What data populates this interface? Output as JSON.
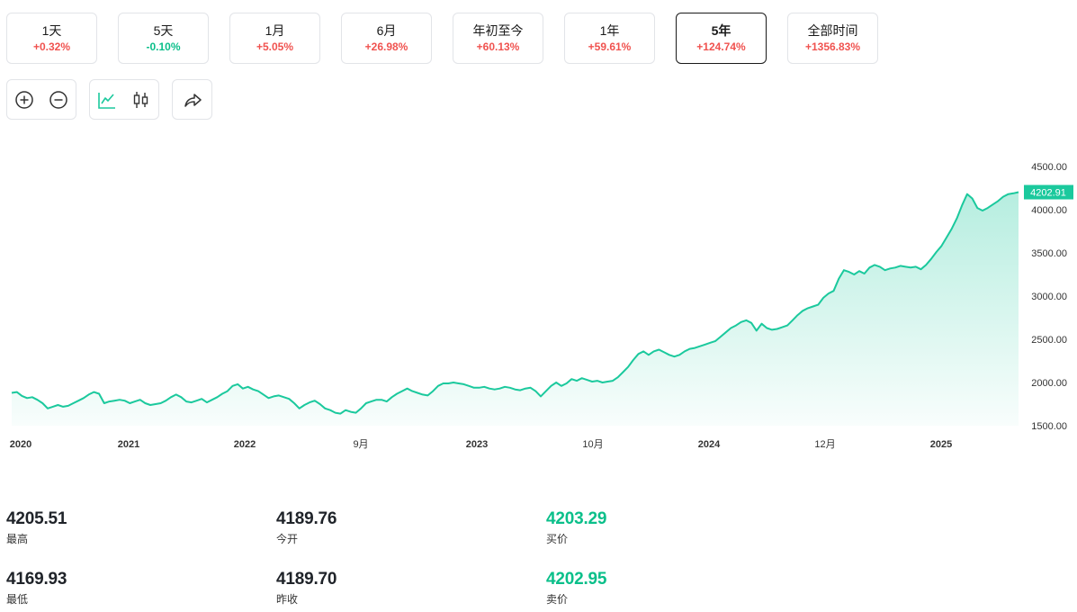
{
  "periods": [
    {
      "label": "1天",
      "change": "+0.32%",
      "trend": "up"
    },
    {
      "label": "5天",
      "change": "-0.10%",
      "trend": "down"
    },
    {
      "label": "1月",
      "change": "+5.05%",
      "trend": "up"
    },
    {
      "label": "6月",
      "change": "+26.98%",
      "trend": "up"
    },
    {
      "label": "年初至今",
      "change": "+60.13%",
      "trend": "up"
    },
    {
      "label": "1年",
      "change": "+59.61%",
      "trend": "up"
    },
    {
      "label": "5年",
      "change": "+124.74%",
      "trend": "up",
      "active": true
    },
    {
      "label": "全部时间",
      "change": "+1356.83%",
      "trend": "up"
    }
  ],
  "toolbar": {
    "zoom_in_icon": "zoom-in-icon",
    "zoom_out_icon": "zoom-out-icon",
    "line_chart_icon": "line-chart-icon",
    "candlestick_icon": "candlestick-icon",
    "share_icon": "share-icon"
  },
  "chart_data": {
    "type": "area",
    "title": "",
    "xlabel": "",
    "ylabel": "",
    "x_tick_labels": [
      "2020",
      "2021",
      "2022",
      "9月",
      "2023",
      "10月",
      "2024",
      "12月",
      "2025"
    ],
    "y_tick_labels": [
      "4500.00",
      "4000.00",
      "3500.00",
      "3000.00",
      "2500.00",
      "2000.00",
      "1500.00"
    ],
    "ylim": [
      1500,
      4500
    ],
    "last_price_label": "4202.91",
    "line_color": "#1bc99d",
    "series": [
      {
        "values": [
          1880,
          1890,
          1845,
          1820,
          1830,
          1800,
          1760,
          1700,
          1720,
          1740,
          1720,
          1730,
          1760,
          1790,
          1820,
          1860,
          1890,
          1870,
          1760,
          1780,
          1790,
          1800,
          1790,
          1760,
          1780,
          1800,
          1760,
          1740,
          1750,
          1760,
          1790,
          1830,
          1860,
          1830,
          1780,
          1770,
          1790,
          1810,
          1770,
          1800,
          1830,
          1870,
          1900,
          1960,
          1980,
          1930,
          1950,
          1920,
          1900,
          1860,
          1820,
          1840,
          1850,
          1830,
          1810,
          1760,
          1700,
          1740,
          1770,
          1790,
          1750,
          1700,
          1680,
          1650,
          1640,
          1680,
          1660,
          1650,
          1700,
          1760,
          1780,
          1800,
          1800,
          1780,
          1830,
          1870,
          1900,
          1930,
          1900,
          1880,
          1860,
          1850,
          1900,
          1960,
          1990,
          1990,
          2000,
          1990,
          1980,
          1960,
          1940,
          1940,
          1950,
          1930,
          1920,
          1930,
          1950,
          1940,
          1920,
          1910,
          1930,
          1940,
          1900,
          1840,
          1900,
          1960,
          2000,
          1960,
          1990,
          2040,
          2020,
          2050,
          2030,
          2010,
          2020,
          2000,
          2010,
          2020,
          2060,
          2120,
          2180,
          2260,
          2330,
          2360,
          2320,
          2360,
          2380,
          2350,
          2320,
          2300,
          2320,
          2360,
          2390,
          2400,
          2420,
          2440,
          2460,
          2480,
          2530,
          2580,
          2630,
          2660,
          2700,
          2720,
          2690,
          2600,
          2680,
          2630,
          2610,
          2620,
          2640,
          2660,
          2720,
          2780,
          2830,
          2860,
          2880,
          2900,
          2980,
          3030,
          3060,
          3200,
          3300,
          3280,
          3250,
          3290,
          3260,
          3330,
          3360,
          3340,
          3300,
          3320,
          3330,
          3350,
          3340,
          3330,
          3340,
          3310,
          3360,
          3430,
          3510,
          3580,
          3680,
          3780,
          3900,
          4050,
          4180,
          4130,
          4020,
          3990,
          4020,
          4060,
          4100,
          4150,
          4180,
          4190,
          4202.91
        ]
      }
    ]
  },
  "stats": [
    {
      "value": "4205.51",
      "label": "最高",
      "color": "dark"
    },
    {
      "value": "4189.76",
      "label": "今开",
      "color": "dark"
    },
    {
      "value": "4203.29",
      "label": "买价",
      "color": "green"
    },
    {
      "value": "4169.93",
      "label": "最低",
      "color": "dark"
    },
    {
      "value": "4189.70",
      "label": "昨收",
      "color": "dark"
    },
    {
      "value": "4202.95",
      "label": "卖价",
      "color": "green"
    }
  ]
}
